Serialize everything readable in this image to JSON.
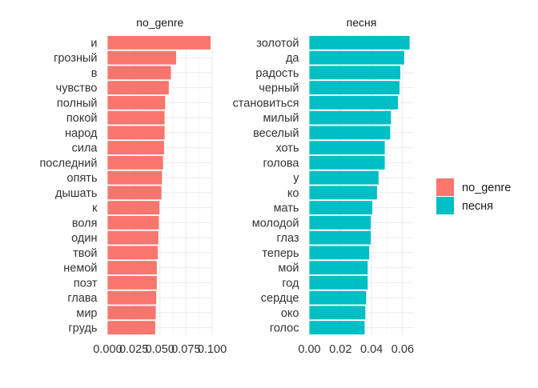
{
  "chart_data": {
    "type": "bar",
    "orientation": "horizontal",
    "legend": {
      "position": "right",
      "entries": [
        {
          "label": "no_genre",
          "color": "#F8766D"
        },
        {
          "label": "песня",
          "color": "#00BFC4"
        }
      ]
    },
    "grid": true,
    "panels": [
      {
        "title": "no_genre",
        "color": "#F8766D",
        "xlim": [
          0,
          0.1
        ],
        "x_ticks": [
          0.0,
          0.025,
          0.05,
          0.075,
          0.1
        ],
        "x_tick_labels": [
          "0.000",
          "0.025",
          "0.050",
          "0.075",
          "0.100"
        ],
        "categories": [
          "и",
          "грозный",
          "в",
          "чувство",
          "полный",
          "покой",
          "народ",
          "сила",
          "последний",
          "опять",
          "дышать",
          "к",
          "воля",
          "один",
          "твой",
          "немой",
          "поэт",
          "глава",
          "мир",
          "грудь"
        ],
        "values": [
          0.0985,
          0.0655,
          0.0605,
          0.0585,
          0.055,
          0.0545,
          0.0545,
          0.054,
          0.053,
          0.052,
          0.0515,
          0.0495,
          0.049,
          0.0485,
          0.048,
          0.047,
          0.047,
          0.0465,
          0.046,
          0.0455
        ]
      },
      {
        "title": "песня",
        "color": "#00BFC4",
        "xlim": [
          0,
          0.067
        ],
        "x_ticks": [
          0.0,
          0.02,
          0.04,
          0.06
        ],
        "x_tick_labels": [
          "0.00",
          "0.02",
          "0.04",
          "0.06"
        ],
        "categories": [
          "золотой",
          "да",
          "радость",
          "черный",
          "становиться",
          "милый",
          "веселый",
          "хоть",
          "голова",
          "у",
          "ко",
          "мать",
          "молодой",
          "глаз",
          "теперь",
          "мой",
          "год",
          "сердце",
          "око",
          "голос"
        ],
        "values": [
          0.0645,
          0.061,
          0.0585,
          0.058,
          0.057,
          0.0525,
          0.052,
          0.0485,
          0.0485,
          0.0445,
          0.0435,
          0.0405,
          0.0395,
          0.0395,
          0.0385,
          0.0375,
          0.0375,
          0.0365,
          0.036,
          0.0355
        ]
      }
    ]
  }
}
